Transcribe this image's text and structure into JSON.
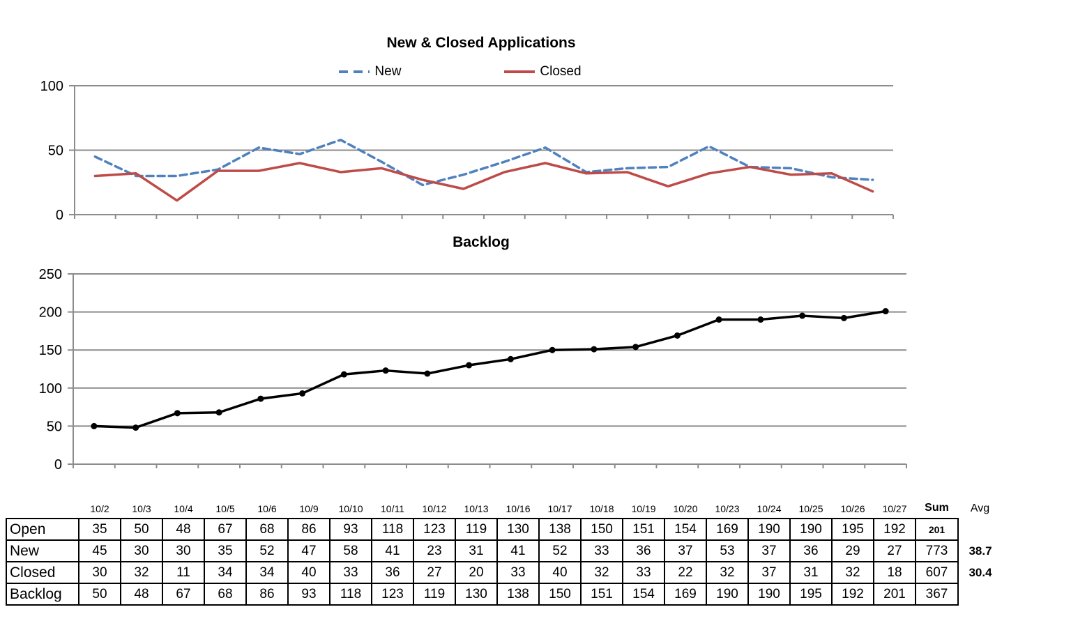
{
  "report": {
    "dates": [
      "10/2",
      "10/3",
      "10/4",
      "10/5",
      "10/6",
      "10/9",
      "10/10",
      "10/11",
      "10/12",
      "10/13",
      "10/16",
      "10/17",
      "10/18",
      "10/19",
      "10/20",
      "10/23",
      "10/24",
      "10/25",
      "10/26",
      "10/27"
    ],
    "sum_label": "Sum",
    "avg_label": "Avg"
  },
  "colors": {
    "new_line": "#4F81BD",
    "closed_line": "#BE4B48",
    "backlog_line": "#000000",
    "grid": "#8C8C8C",
    "text": "#000000"
  },
  "chart_data": [
    {
      "type": "line",
      "title": "New & Closed Applications",
      "categories": [
        "10/2",
        "10/3",
        "10/4",
        "10/5",
        "10/6",
        "10/9",
        "10/10",
        "10/11",
        "10/12",
        "10/13",
        "10/16",
        "10/17",
        "10/18",
        "10/19",
        "10/20",
        "10/23",
        "10/24",
        "10/25",
        "10/26",
        "10/27"
      ],
      "series": [
        {
          "name": "New",
          "color": "#4F81BD",
          "dash": true,
          "markers": false,
          "values": [
            45,
            30,
            30,
            35,
            52,
            47,
            58,
            41,
            23,
            31,
            41,
            52,
            33,
            36,
            37,
            53,
            37,
            36,
            29,
            27
          ]
        },
        {
          "name": "Closed",
          "color": "#BE4B48",
          "dash": false,
          "markers": false,
          "values": [
            30,
            32,
            11,
            34,
            34,
            40,
            33,
            36,
            27,
            20,
            33,
            40,
            32,
            33,
            22,
            32,
            37,
            31,
            32,
            18
          ]
        }
      ],
      "xlabel": "",
      "ylabel": "",
      "ylim": [
        0,
        100
      ],
      "yticks": [
        0,
        50,
        100
      ],
      "grid": true,
      "legend_position": "top"
    },
    {
      "type": "line",
      "title": "Backlog",
      "categories": [
        "10/2",
        "10/3",
        "10/4",
        "10/5",
        "10/6",
        "10/9",
        "10/10",
        "10/11",
        "10/12",
        "10/13",
        "10/16",
        "10/17",
        "10/18",
        "10/19",
        "10/20",
        "10/23",
        "10/24",
        "10/25",
        "10/26",
        "10/27"
      ],
      "series": [
        {
          "name": "Backlog",
          "color": "#000000",
          "dash": false,
          "markers": true,
          "values": [
            50,
            48,
            67,
            68,
            86,
            93,
            118,
            123,
            119,
            130,
            138,
            150,
            151,
            154,
            169,
            190,
            190,
            195,
            192,
            201
          ]
        }
      ],
      "xlabel": "",
      "ylabel": "",
      "ylim": [
        0,
        250
      ],
      "yticks": [
        0,
        50,
        100,
        150,
        200,
        250
      ],
      "grid": true,
      "legend_position": "none"
    }
  ],
  "table": {
    "rows": [
      {
        "label": "Open",
        "values": [
          35,
          50,
          48,
          67,
          68,
          86,
          93,
          118,
          123,
          119,
          130,
          138,
          150,
          151,
          154,
          169,
          190,
          190,
          195,
          192
        ],
        "sum": "201",
        "avg": ""
      },
      {
        "label": "New",
        "values": [
          45,
          30,
          30,
          35,
          52,
          47,
          58,
          41,
          23,
          31,
          41,
          52,
          33,
          36,
          37,
          53,
          37,
          36,
          29,
          27
        ],
        "sum": "773",
        "avg": "38.7"
      },
      {
        "label": "Closed",
        "values": [
          30,
          32,
          11,
          34,
          34,
          40,
          33,
          36,
          27,
          20,
          33,
          40,
          32,
          33,
          22,
          32,
          37,
          31,
          32,
          18
        ],
        "sum": "607",
        "avg": "30.4"
      },
      {
        "label": "Backlog",
        "values": [
          50,
          48,
          67,
          68,
          86,
          93,
          118,
          123,
          119,
          130,
          138,
          150,
          151,
          154,
          169,
          190,
          190,
          195,
          192,
          201
        ],
        "sum": "367",
        "avg": ""
      }
    ]
  }
}
